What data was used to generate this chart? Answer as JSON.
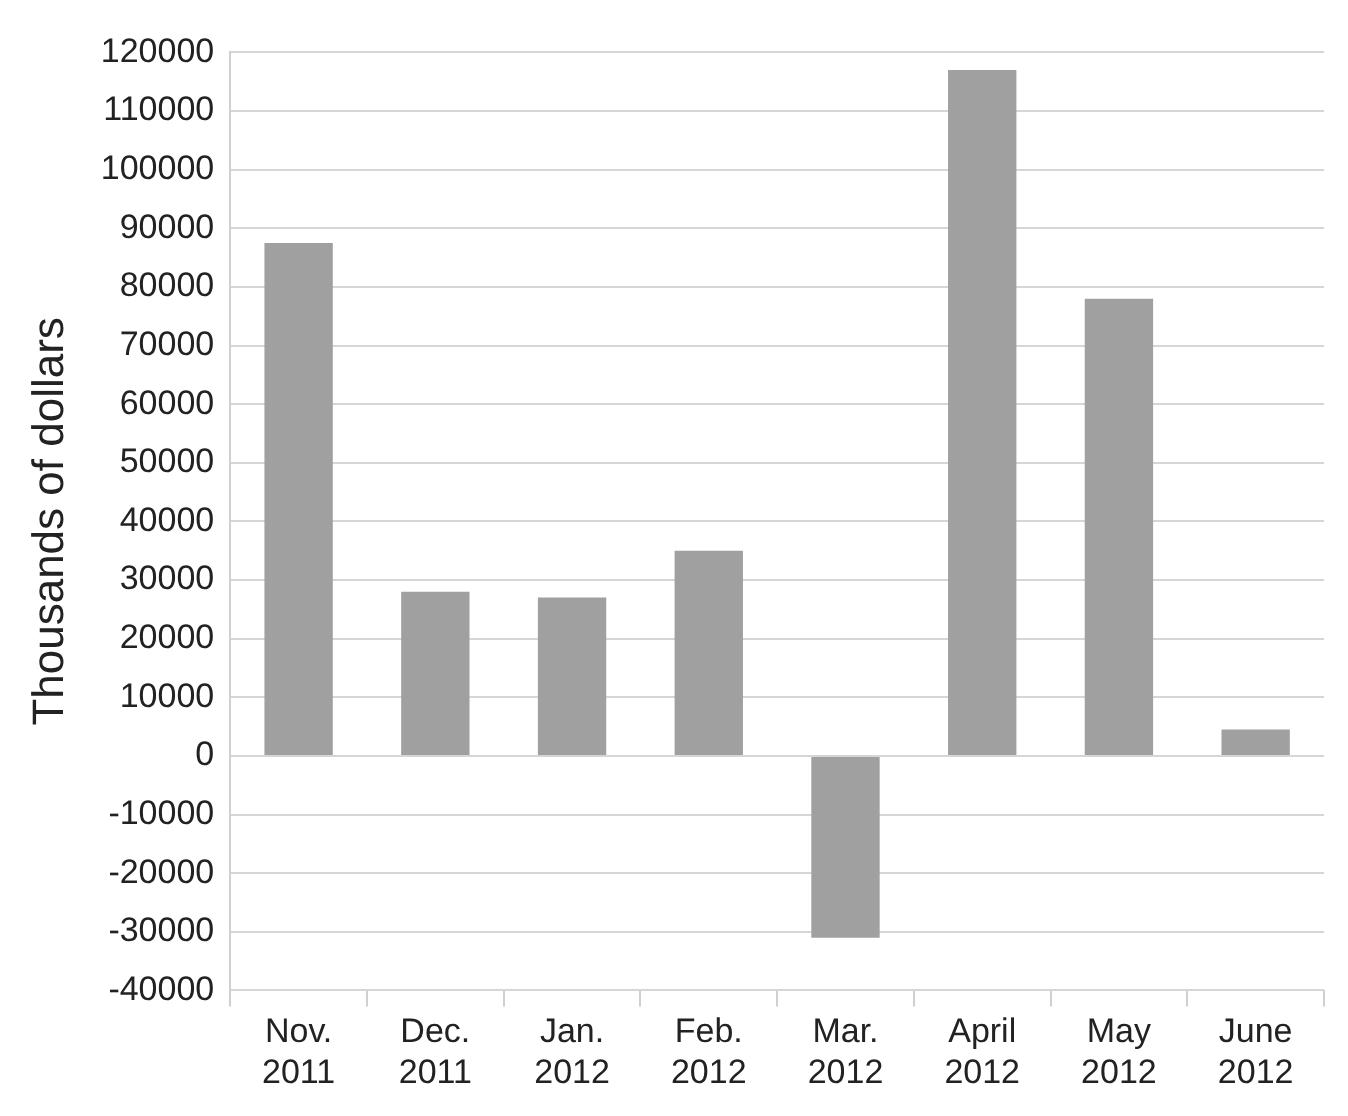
{
  "chart_data": {
    "type": "bar",
    "ylabel": "Thousands of dollars",
    "categories": [
      "Nov. 2011",
      "Dec. 2011",
      "Jan. 2012",
      "Feb. 2012",
      "Mar. 2012",
      "April 2012",
      "May 2012",
      "June 2012"
    ],
    "values": [
      87500,
      28000,
      27000,
      35000,
      -31000,
      117000,
      78000,
      4500
    ],
    "color": "#a0a0a0",
    "ylim": [
      -40000,
      120000
    ],
    "yticks": [
      -40000,
      -30000,
      -20000,
      -10000,
      0,
      10000,
      20000,
      30000,
      40000,
      50000,
      60000,
      70000,
      80000,
      90000,
      100000,
      110000,
      120000
    ],
    "grid": "y"
  }
}
